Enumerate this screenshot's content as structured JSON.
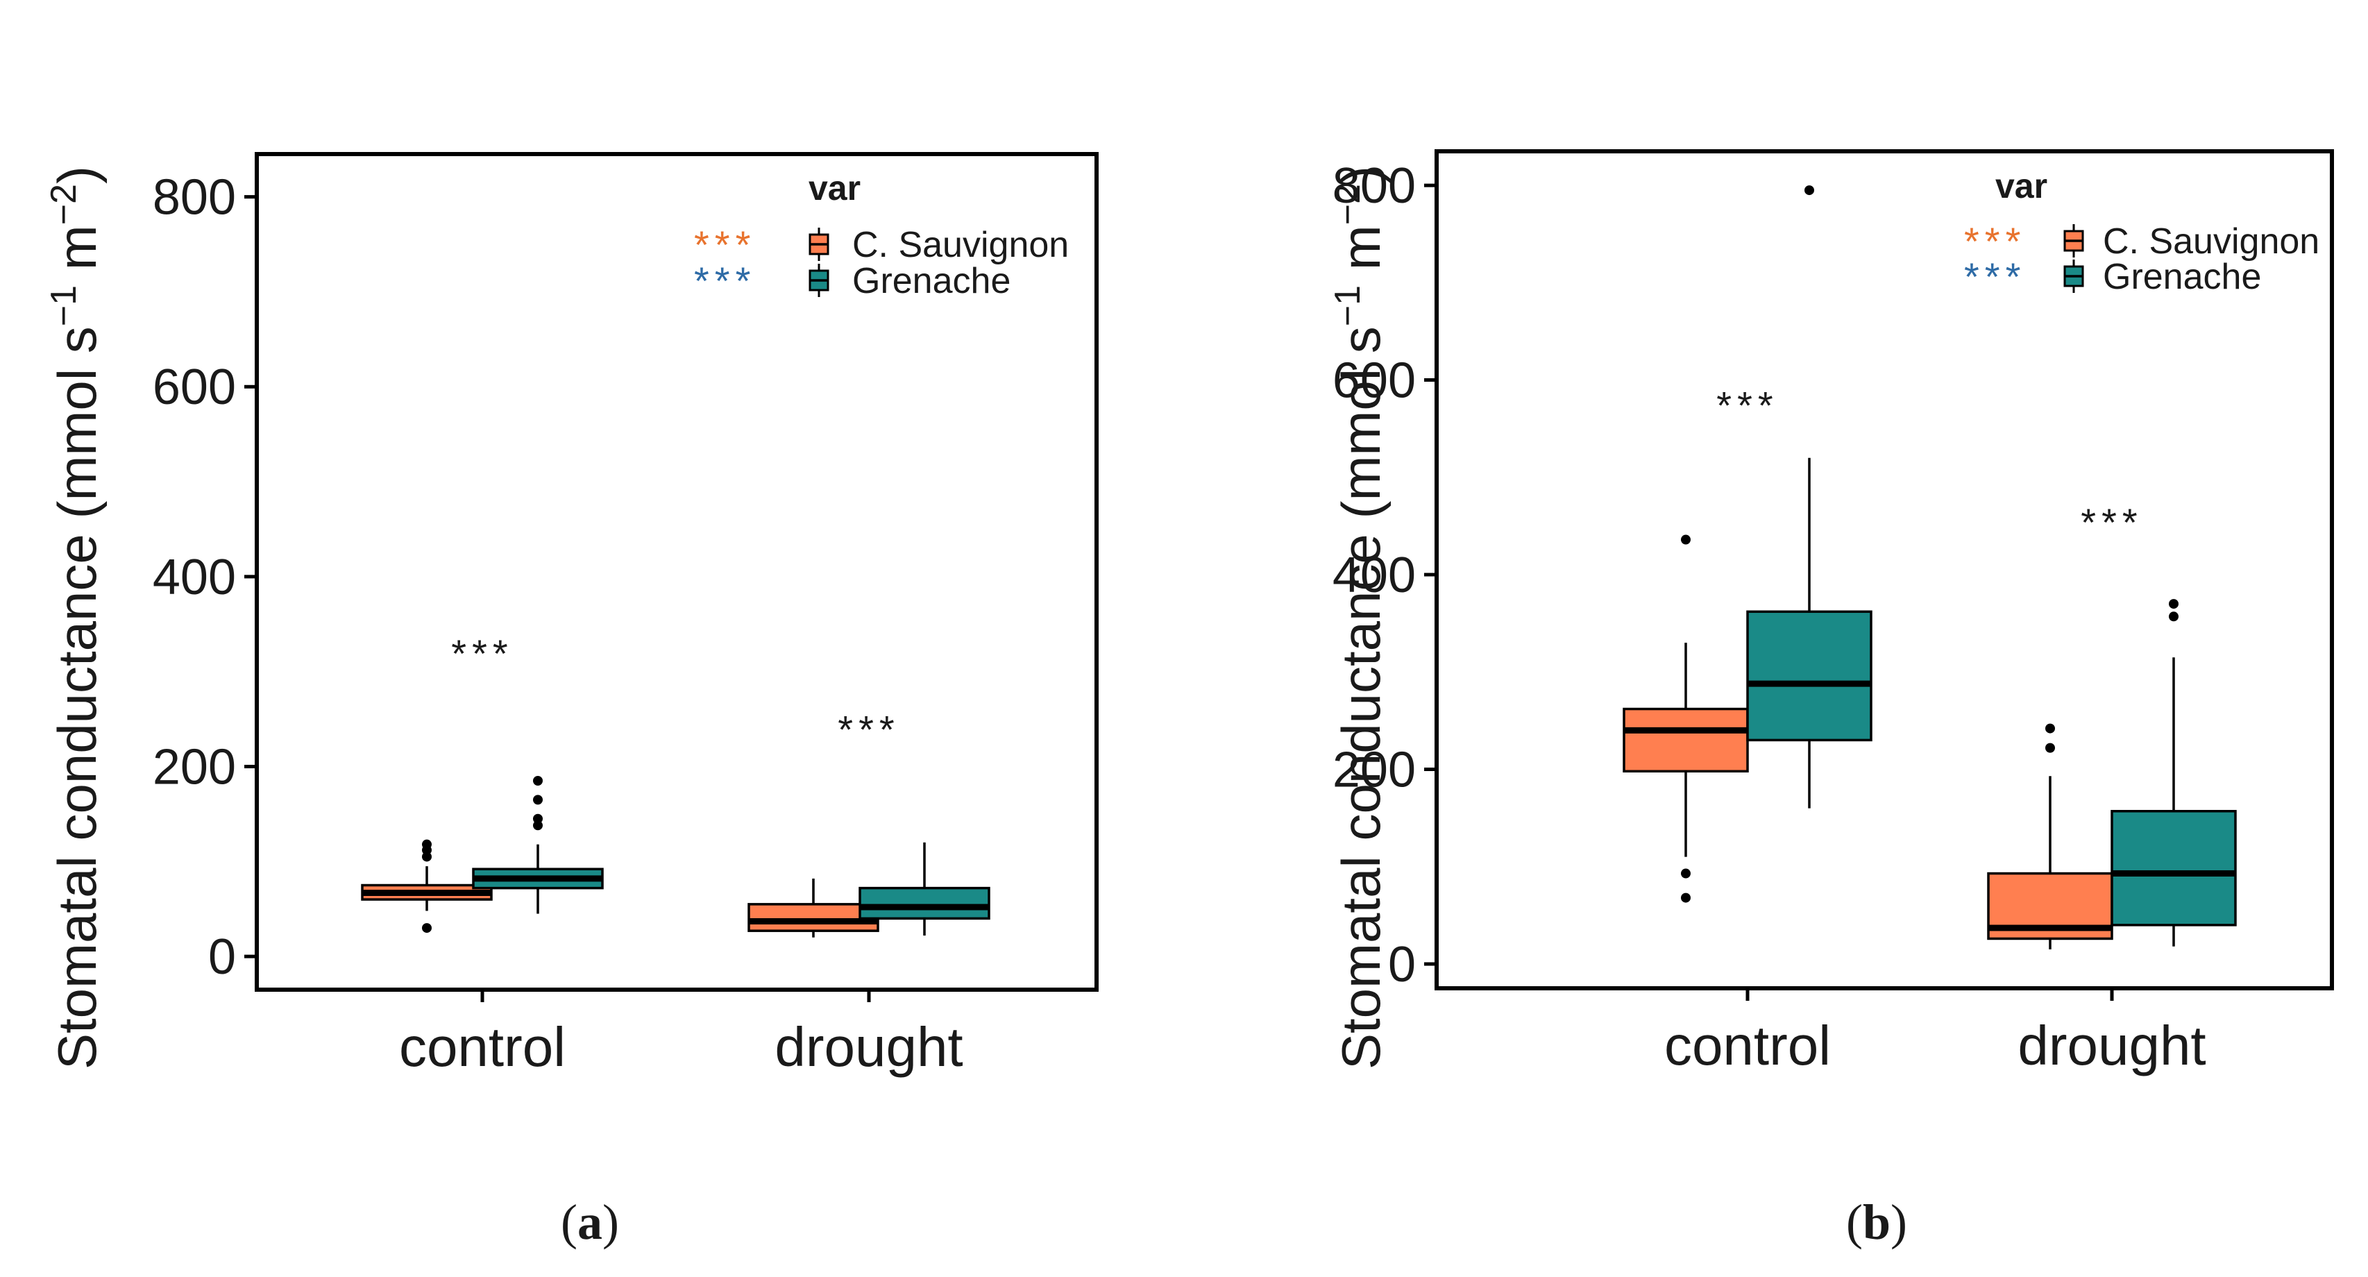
{
  "colors": {
    "cabernet": "#FF7F50",
    "grenache": "#1A8A87",
    "sig_cabernet": "#E8732E",
    "sig_grenache": "#2E6BA6",
    "axis": "#000000"
  },
  "chart_data": [
    {
      "panel": "a",
      "type": "box",
      "caption_open": "(",
      "caption_letter": "a",
      "caption_close": ")",
      "ylabel_main": "Stomatal conductance (mmol s",
      "ylabel_sup1": "−1",
      "ylabel_mid": " m",
      "ylabel_sup2": "−2",
      "ylabel_end": ")",
      "ylim": [
        -35,
        845
      ],
      "yticks": [
        0,
        200,
        400,
        600,
        800
      ],
      "categories": [
        "control",
        "drought"
      ],
      "legend": {
        "title": "var",
        "entries": [
          {
            "label": "C. Sauvignon",
            "sig": "***"
          },
          {
            "label": "Grenache",
            "sig": "***"
          }
        ]
      },
      "significance": [
        {
          "category": "control",
          "label": "***",
          "y": 305
        },
        {
          "category": "drought",
          "label": "***",
          "y": 225
        }
      ],
      "series": [
        {
          "name": "C. Sauvignon",
          "boxes": [
            {
              "category": "control",
              "whisker_low": 48,
              "q1": 60,
              "median": 67,
              "q3": 75,
              "whisker_high": 95,
              "outliers": [
                30,
                105,
                112,
                118
              ]
            },
            {
              "category": "drought",
              "whisker_low": 20,
              "q1": 27,
              "median": 37,
              "q3": 55,
              "whisker_high": 82,
              "outliers": []
            }
          ]
        },
        {
          "name": "Grenache",
          "boxes": [
            {
              "category": "control",
              "whisker_low": 45,
              "q1": 72,
              "median": 82,
              "q3": 92,
              "whisker_high": 118,
              "outliers": [
                138,
                145,
                165,
                185
              ]
            },
            {
              "category": "drought",
              "whisker_low": 22,
              "q1": 40,
              "median": 52,
              "q3": 72,
              "whisker_high": 120,
              "outliers": []
            }
          ]
        }
      ]
    },
    {
      "panel": "b",
      "type": "box",
      "caption_open": "(",
      "caption_letter": "b",
      "caption_close": ")",
      "ylabel_main": "Stomatal conductance (mmol s",
      "ylabel_sup1": "−1",
      "ylabel_mid": " m",
      "ylabel_sup2": "−2",
      "ylabel_end": ")",
      "ylim": [
        -25,
        835
      ],
      "yticks": [
        0,
        200,
        400,
        600,
        800
      ],
      "categories": [
        "control",
        "drought"
      ],
      "legend": {
        "title": "var",
        "entries": [
          {
            "label": "C. Sauvignon",
            "sig": "***"
          },
          {
            "label": "Grenache",
            "sig": "***"
          }
        ]
      },
      "significance": [
        {
          "category": "control",
          "label": "***",
          "y": 560
        },
        {
          "category": "drought",
          "label": "***",
          "y": 440
        }
      ],
      "series": [
        {
          "name": "C. Sauvignon",
          "boxes": [
            {
              "category": "control",
              "whisker_low": 110,
              "q1": 198,
              "median": 240,
              "q3": 262,
              "whisker_high": 330,
              "outliers": [
                68,
                93,
                436
              ]
            },
            {
              "category": "drought",
              "whisker_low": 15,
              "q1": 26,
              "median": 37,
              "q3": 93,
              "whisker_high": 193,
              "outliers": [
                222,
                242
              ]
            }
          ]
        },
        {
          "name": "Grenache",
          "boxes": [
            {
              "category": "control",
              "whisker_low": 160,
              "q1": 230,
              "median": 288,
              "q3": 362,
              "whisker_high": 520,
              "outliers": [
                795
              ]
            },
            {
              "category": "drought",
              "whisker_low": 18,
              "q1": 40,
              "median": 93,
              "q3": 157,
              "whisker_high": 315,
              "outliers": [
                357,
                370
              ]
            }
          ]
        }
      ]
    }
  ]
}
